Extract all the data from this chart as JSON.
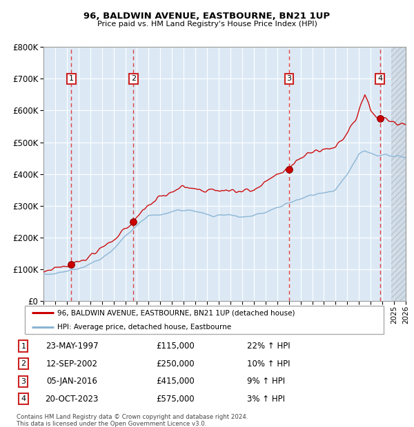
{
  "title1": "96, BALDWIN AVENUE, EASTBOURNE, BN21 1UP",
  "title2": "Price paid vs. HM Land Registry's House Price Index (HPI)",
  "legend_line1": "96, BALDWIN AVENUE, EASTBOURNE, BN21 1UP (detached house)",
  "legend_line2": "HPI: Average price, detached house, Eastbourne",
  "footnote1": "Contains HM Land Registry data © Crown copyright and database right 2024.",
  "footnote2": "This data is licensed under the Open Government Licence v3.0.",
  "transactions": [
    {
      "num": 1,
      "date": "23-MAY-1997",
      "year": 1997.38,
      "price": 115000,
      "hpi_pct": "22%"
    },
    {
      "num": 2,
      "date": "12-SEP-2002",
      "year": 2002.7,
      "price": 250000,
      "hpi_pct": "10%"
    },
    {
      "num": 3,
      "date": "05-JAN-2016",
      "year": 2016.02,
      "price": 415000,
      "hpi_pct": "9%"
    },
    {
      "num": 4,
      "date": "20-OCT-2023",
      "year": 2023.8,
      "price": 575000,
      "hpi_pct": "3%"
    }
  ],
  "xmin": 1995.0,
  "xmax": 2026.0,
  "ymin": 0,
  "ymax": 800000,
  "yticks": [
    0,
    100000,
    200000,
    300000,
    400000,
    500000,
    600000,
    700000,
    800000
  ],
  "plot_bg_color": "#dce9f5",
  "fig_bg_color": "#ffffff",
  "grid_color": "#ffffff",
  "red_line_color": "#cc0000",
  "blue_line_color": "#8ab4d4",
  "hatch_region_start": 2024.75,
  "hatch_color": "#c5cdd6"
}
